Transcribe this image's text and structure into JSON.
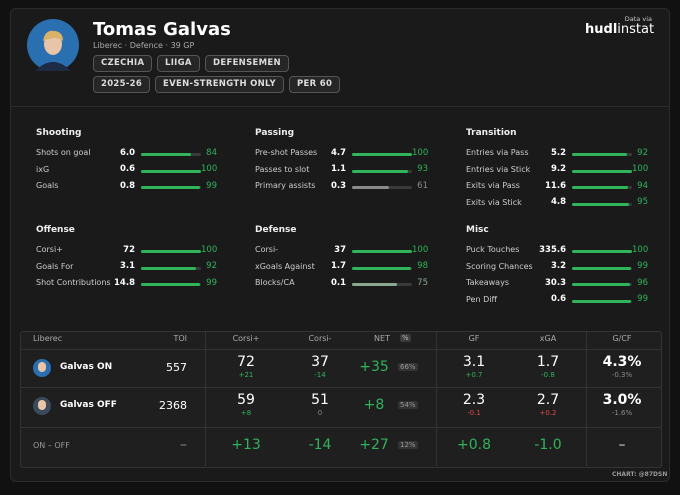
{
  "header": {
    "name": "Tomas Galvas",
    "meta": "Liberec · Defence · 39 GP",
    "tags": [
      "CZECHIA",
      "LIIGA",
      "DEFENSEMEN"
    ],
    "tags2": [
      "2025-26",
      "EVEN-STRENGTH ONLY",
      "PER 60"
    ],
    "source_label": "Data via",
    "source_bold": "hudl",
    "source_rest": "instat"
  },
  "groups": [
    {
      "title": "Shooting",
      "rows": [
        {
          "label": "Shots on goal",
          "value": "6.0",
          "pct": 84,
          "color": "#2fb45a"
        },
        {
          "label": "ixG",
          "value": "0.6",
          "pct": 100,
          "color": "#2fb45a"
        },
        {
          "label": "Goals",
          "value": "0.8",
          "pct": 99,
          "color": "#2fb45a"
        }
      ]
    },
    {
      "title": "Passing",
      "rows": [
        {
          "label": "Pre-shot Passes",
          "value": "4.7",
          "pct": 100,
          "color": "#2fb45a"
        },
        {
          "label": "Passes to slot",
          "value": "1.1",
          "pct": 93,
          "color": "#2fb45a"
        },
        {
          "label": "Primary assists",
          "value": "0.3",
          "pct": 61,
          "color": "#8a8a8a"
        }
      ]
    },
    {
      "title": "Transition",
      "rows": [
        {
          "label": "Entries via Pass",
          "value": "5.2",
          "pct": 92,
          "color": "#2fb45a"
        },
        {
          "label": "Entries via Stick",
          "value": "9.2",
          "pct": 100,
          "color": "#2fb45a"
        },
        {
          "label": "Exits via Pass",
          "value": "11.6",
          "pct": 94,
          "color": "#2fb45a"
        },
        {
          "label": "Exits via Stick",
          "value": "4.8",
          "pct": 95,
          "color": "#2fb45a"
        }
      ]
    },
    {
      "title": "Offense",
      "rows": [
        {
          "label": "Corsi+",
          "value": "72",
          "pct": 100,
          "color": "#2fb45a"
        },
        {
          "label": "Goals For",
          "value": "3.1",
          "pct": 92,
          "color": "#2fb45a"
        },
        {
          "label": "Shot Contributions",
          "value": "14.8",
          "pct": 99,
          "color": "#2fb45a"
        }
      ]
    },
    {
      "title": "Defense",
      "rows": [
        {
          "label": "Corsi-",
          "value": "37",
          "pct": 100,
          "color": "#2fb45a"
        },
        {
          "label": "xGoals Against",
          "value": "1.7",
          "pct": 98,
          "color": "#2fb45a"
        },
        {
          "label": "Blocks/CA",
          "value": "0.1",
          "pct": 75,
          "color": "#8aa88f"
        }
      ]
    },
    {
      "title": "Misc",
      "rows": [
        {
          "label": "Puck Touches",
          "value": "335.6",
          "pct": 100,
          "color": "#2fb45a"
        },
        {
          "label": "Scoring Chances",
          "value": "3.2",
          "pct": 99,
          "color": "#2fb45a"
        },
        {
          "label": "Takeaways",
          "value": "30.3",
          "pct": 96,
          "color": "#2fb45a"
        },
        {
          "label": "Pen Diff",
          "value": "0.6",
          "pct": 99,
          "color": "#2fb45a"
        }
      ]
    }
  ],
  "table": {
    "team": "Liberec",
    "columns": [
      "TOI",
      "Corsi+",
      "Corsi-",
      "NET",
      "GF",
      "xGA",
      "G/CF"
    ],
    "pct_label": "%",
    "rows": [
      {
        "name": "Galvas ON",
        "cells": [
          {
            "main": "557"
          },
          {
            "main": "72",
            "sub": "+21",
            "sub_color": "#2fb45a"
          },
          {
            "main": "37",
            "sub": "-14",
            "sub_color": "#2fb45a"
          },
          {
            "main": "+35",
            "main_color": "#2fb45a",
            "badge": "66%"
          },
          {
            "main": "3.1",
            "sub": "+0.7",
            "sub_color": "#2fb45a"
          },
          {
            "main": "1.7",
            "sub": "-0.8",
            "sub_color": "#2fb45a"
          },
          {
            "main": "4.3%",
            "sub": "-0.3%",
            "sub_color": "#8a8a8a"
          }
        ]
      },
      {
        "name": "Galvas OFF",
        "cells": [
          {
            "main": "2368"
          },
          {
            "main": "59",
            "sub": "+8",
            "sub_color": "#2fb45a"
          },
          {
            "main": "51",
            "sub": "0",
            "sub_color": "#8a8a8a"
          },
          {
            "main": "+8",
            "main_color": "#2fb45a",
            "badge": "54%"
          },
          {
            "main": "2.3",
            "sub": "-0.1",
            "sub_color": "#e0474c"
          },
          {
            "main": "2.7",
            "sub": "+0.2",
            "sub_color": "#e0474c"
          },
          {
            "main": "3.0%",
            "sub": "-1.6%",
            "sub_color": "#8a8a8a"
          }
        ]
      },
      {
        "name": "ON – OFF",
        "cells": [
          {
            "main": "–",
            "main_color": "#8a8a8a"
          },
          {
            "main": "+13",
            "main_color": "#2fb45a"
          },
          {
            "main": "-14",
            "main_color": "#2fb45a"
          },
          {
            "main": "+27",
            "main_color": "#2fb45a",
            "badge": "12%"
          },
          {
            "main": "+0.8",
            "main_color": "#2fb45a"
          },
          {
            "main": "-1.0",
            "main_color": "#2fb45a"
          },
          {
            "main": "–",
            "main_color": "#8a8a8a"
          }
        ]
      }
    ]
  },
  "footer": "CHART: @87DSN"
}
